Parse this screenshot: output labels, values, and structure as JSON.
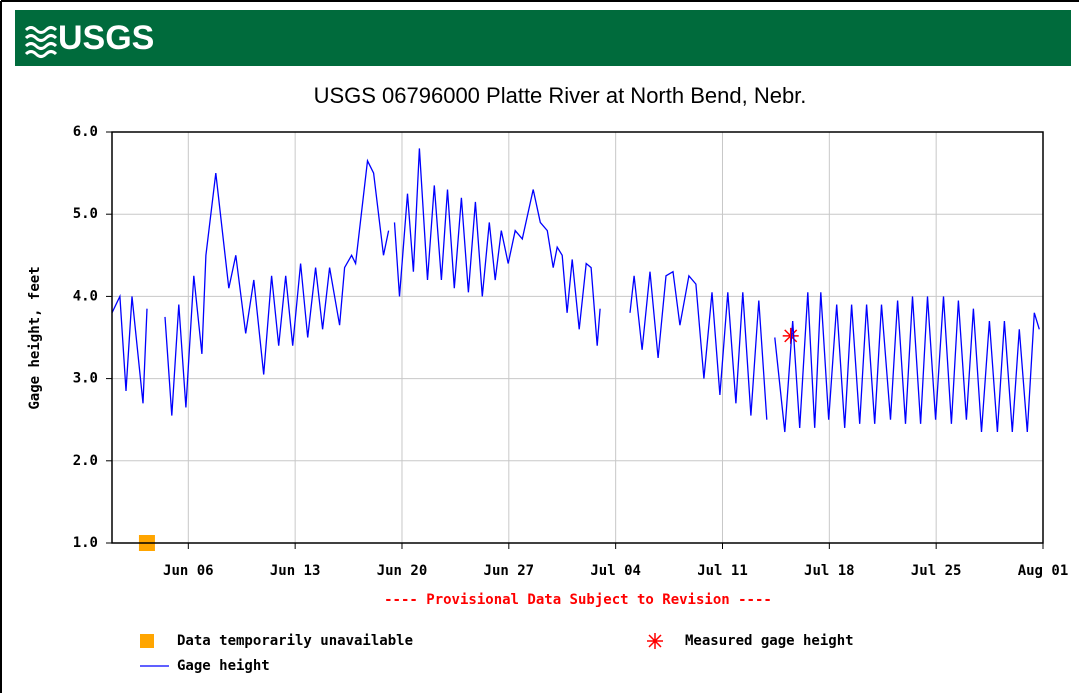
{
  "header": {
    "logo": "USGS"
  },
  "chart_data": {
    "type": "line",
    "title": "USGS 06796000 Platte River at North Bend, Nebr.",
    "y_label": "Gage height, feet",
    "annotation": "---- Provisional Data Subject to Revision ----",
    "xlim": [
      0,
      61
    ],
    "xticks": [
      {
        "value": 5,
        "label": "Jun 06"
      },
      {
        "value": 12,
        "label": "Jun 13"
      },
      {
        "value": 19,
        "label": "Jun 20"
      },
      {
        "value": 26,
        "label": "Jun 27"
      },
      {
        "value": 33,
        "label": "Jul 04"
      },
      {
        "value": 40,
        "label": "Jul 11"
      },
      {
        "value": 47,
        "label": "Jul 18"
      },
      {
        "value": 54,
        "label": "Jul 25"
      },
      {
        "value": 61,
        "label": "Aug 01"
      }
    ],
    "ylim": [
      1,
      6
    ],
    "yticks": [
      {
        "value": 1,
        "label": "1.0"
      },
      {
        "value": 2,
        "label": "2.0"
      },
      {
        "value": 3,
        "label": "3.0"
      },
      {
        "value": 4,
        "label": "4.0"
      },
      {
        "value": 5,
        "label": "5.0"
      },
      {
        "value": 6,
        "label": "6.0"
      }
    ],
    "grid": true,
    "series": [
      {
        "name": "Data temporarily unavailable",
        "marker": "square",
        "color": "#ffa500",
        "x": [
          2.29
        ],
        "values": [
          1.0
        ]
      },
      {
        "name": "Measured gage height",
        "marker": "asterisk",
        "color": "#ff0000",
        "x": [
          44.47
        ],
        "values": [
          3.52
        ]
      },
      {
        "name": "Gage height",
        "marker": "line",
        "color": "#0000ff",
        "x": [
          0,
          0.52,
          0.92,
          1.31,
          2.03,
          2.29,
          null,
          3.47,
          3.92,
          4.38,
          4.84,
          5.36,
          5.89,
          6.15,
          6.8,
          7.65,
          8.11,
          8.76,
          9.29,
          9.94,
          10.46,
          10.92,
          11.38,
          11.84,
          12.36,
          12.82,
          13.34,
          13.8,
          14.26,
          14.91,
          15.24,
          15.7,
          15.96,
          16.74,
          17.14,
          17.79,
          18.12,
          null,
          18.51,
          18.84,
          19.36,
          19.75,
          20.14,
          20.67,
          21.12,
          21.58,
          21.98,
          22.43,
          22.89,
          23.35,
          23.81,
          24.26,
          24.72,
          25.11,
          25.51,
          25.96,
          26.42,
          26.88,
          27.6,
          28.06,
          28.52,
          28.91,
          29.17,
          29.5,
          29.82,
          30.15,
          30.61,
          31.07,
          31.39,
          31.79,
          31.98,
          null,
          33.94,
          34.21,
          34.73,
          35.25,
          35.78,
          36.3,
          36.76,
          37.21,
          37.8,
          38.26,
          38.78,
          39.31,
          39.83,
          40.35,
          40.88,
          41.33,
          41.86,
          42.38,
          42.9,
          null,
          43.43,
          44.08,
          44.6,
          45.06,
          45.59,
          46.04,
          46.44,
          46.96,
          47.48,
          48.01,
          48.46,
          48.99,
          49.44,
          49.97,
          50.42,
          51.01,
          51.47,
          51.99,
          52.45,
          52.98,
          53.43,
          53.96,
          54.48,
          55.0,
          55.46,
          55.98,
          56.44,
          56.97,
          57.49,
          58.01,
          58.47,
          58.99,
          59.45,
          59.97,
          60.43,
          60.76
        ],
        "values": [
          3.8,
          4.0,
          2.85,
          4.0,
          2.7,
          3.85,
          null,
          3.75,
          2.55,
          3.9,
          2.65,
          4.25,
          3.3,
          4.5,
          5.5,
          4.1,
          4.5,
          3.55,
          4.2,
          3.05,
          4.25,
          3.4,
          4.25,
          3.4,
          4.4,
          3.5,
          4.35,
          3.6,
          4.35,
          3.65,
          4.35,
          4.5,
          4.4,
          5.65,
          5.5,
          4.5,
          4.8,
          null,
          4.9,
          4.0,
          5.25,
          4.3,
          5.8,
          4.2,
          5.35,
          4.2,
          5.3,
          4.1,
          5.2,
          4.05,
          5.15,
          4.0,
          4.9,
          4.2,
          4.8,
          4.4,
          4.8,
          4.7,
          5.3,
          4.9,
          4.8,
          4.35,
          4.6,
          4.5,
          3.8,
          4.45,
          3.6,
          4.4,
          4.35,
          3.4,
          3.85,
          null,
          3.8,
          4.25,
          3.35,
          4.3,
          3.25,
          4.25,
          4.3,
          3.65,
          4.25,
          4.15,
          3.0,
          4.05,
          2.8,
          4.05,
          2.7,
          4.05,
          2.55,
          3.95,
          2.5,
          null,
          3.5,
          2.35,
          3.7,
          2.4,
          4.05,
          2.4,
          4.05,
          2.5,
          3.9,
          2.4,
          3.9,
          2.45,
          3.9,
          2.45,
          3.9,
          2.5,
          3.95,
          2.45,
          4.0,
          2.45,
          4.0,
          2.5,
          4.0,
          2.45,
          3.95,
          2.5,
          3.85,
          2.35,
          3.7,
          2.35,
          3.7,
          2.35,
          3.6,
          2.35,
          3.8,
          3.6
        ]
      }
    ]
  }
}
